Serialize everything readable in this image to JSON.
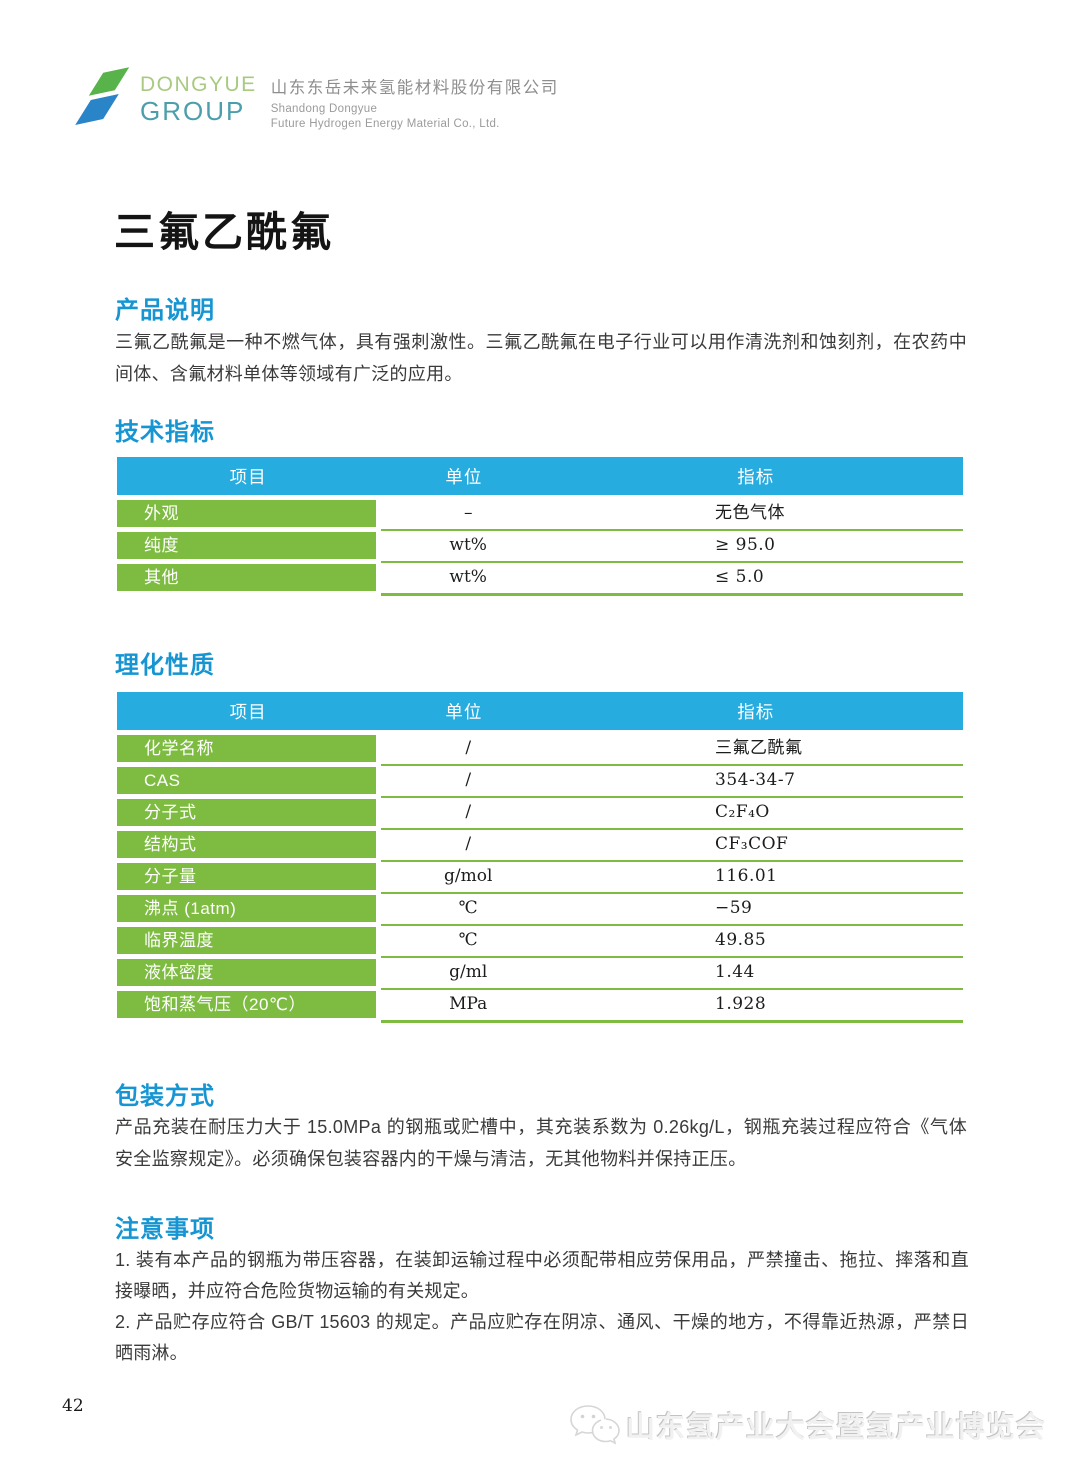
{
  "header": {
    "logo_word1": "DONGYUE",
    "logo_word2": "GROUP",
    "company_cn": "山东东岳未来氢能材料股份有限公司",
    "company_en1": "Shandong Dongyue",
    "company_en2": "Future Hydrogen Energy Material Co., Ltd."
  },
  "title": "三氟乙酰氟",
  "sections": {
    "description": {
      "heading": "产品说明",
      "body": "三氟乙酰氟是一种不燃气体，具有强刺激性。三氟乙酰氟在电子行业可以用作清洗剂和蚀刻剂，在农药中间体、含氟材料单体等领域有广泛的应用。"
    },
    "tech": {
      "heading": "技术指标",
      "table": {
        "headers": [
          "项目",
          "单位",
          "指标"
        ],
        "rows": [
          [
            "外观",
            "–",
            "无色气体"
          ],
          [
            "纯度",
            "wt%",
            "≥ 95.0"
          ],
          [
            "其他",
            "wt%",
            "≤ 5.0"
          ]
        ]
      }
    },
    "phys": {
      "heading": "理化性质",
      "table": {
        "headers": [
          "项目",
          "单位",
          "指标"
        ],
        "rows": [
          [
            "化学名称",
            "/",
            "三氟乙酰氟"
          ],
          [
            "CAS",
            "/",
            "354-34-7"
          ],
          [
            "分子式",
            "/",
            "C₂F₄O"
          ],
          [
            "结构式",
            "/",
            "CF₃COF"
          ],
          [
            "分子量",
            "g/mol",
            "116.01"
          ],
          [
            "沸点 (1atm)",
            "℃",
            "−59"
          ],
          [
            "临界温度",
            "℃",
            "49.85"
          ],
          [
            "液体密度",
            "g/ml",
            "1.44"
          ],
          [
            "饱和蒸气压（20℃）",
            "MPa",
            "1.928"
          ]
        ]
      }
    },
    "packaging": {
      "heading": "包装方式",
      "body": "产品充装在耐压力大于 15.0MPa 的钢瓶或贮槽中，其充装系数为 0.26kg/L，钢瓶充装过程应符合《气体安全监察规定》。必须确保包装容器内的干燥与清洁，无其他物料并保持正压。"
    },
    "notes": {
      "heading": "注意事项",
      "items": [
        "1. 装有本产品的钢瓶为带压容器，在装卸运输过程中必须配带相应劳保用品，严禁撞击、拖拉、摔落和直接曝晒，并应符合危险货物运输的有关规定。",
        "2. 产品贮存应符合 GB/T 15603 的规定。产品应贮存在阴凉、通风、干燥的地方，不得靠近热源，严禁日晒雨淋。"
      ]
    }
  },
  "footer": {
    "page_number": "42",
    "watermark": "山东氢产业大会暨氢产业博览会"
  },
  "colors": {
    "table_header_blue": "#27ace0",
    "table_green": "#7dbc41",
    "heading_blue": "#1695d2",
    "logo_green": "#57b34a",
    "logo_blue": "#2a84c8"
  }
}
